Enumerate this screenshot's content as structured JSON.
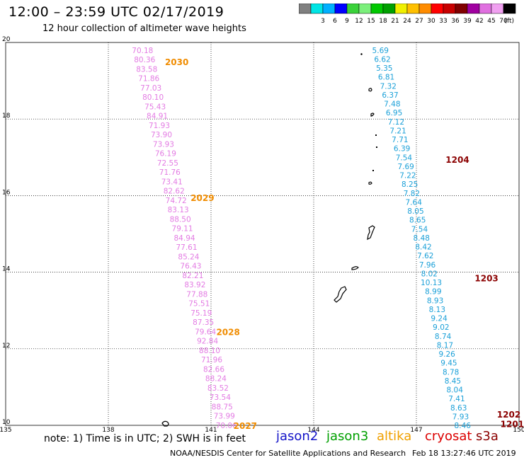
{
  "header": {
    "title": "12:00 – 23:59 UTC 02/17/2019",
    "subtitle": "12 hour collection of altimeter wave heights"
  },
  "colorbar": {
    "unit": "(ft)",
    "entries": [
      {
        "label": "",
        "color": "#808080"
      },
      {
        "label": "3",
        "color": "#00e5e5"
      },
      {
        "label": "6",
        "color": "#00b0ff"
      },
      {
        "label": "9",
        "color": "#0000ff"
      },
      {
        "label": "12",
        "color": "#3ad23a"
      },
      {
        "label": "15",
        "color": "#7cf07c"
      },
      {
        "label": "18",
        "color": "#00c800"
      },
      {
        "label": "21",
        "color": "#00a000"
      },
      {
        "label": "24",
        "color": "#f0f000"
      },
      {
        "label": "27",
        "color": "#ffc000"
      },
      {
        "label": "30",
        "color": "#ff8c00"
      },
      {
        "label": "33",
        "color": "#ff0000"
      },
      {
        "label": "36",
        "color": "#c80000"
      },
      {
        "label": "39",
        "color": "#800000"
      },
      {
        "label": "42",
        "color": "#a000a0"
      },
      {
        "label": "45",
        "color": "#e070e0"
      },
      {
        "label": "70",
        "color": "#f0a0f0"
      },
      {
        "label": "",
        "color": "#000000"
      }
    ]
  },
  "map": {
    "lon_min": 135,
    "lon_max": 150,
    "lat_min": 10,
    "lat_max": 20,
    "lon_ticks": [
      "135",
      "138",
      "141",
      "144",
      "147",
      "150"
    ],
    "lat_ticks": [
      "20",
      "18",
      "16",
      "14",
      "12",
      "10"
    ]
  },
  "tracks": [
    {
      "satellite": "cryosat",
      "color": "#e37be3",
      "lon_start": 139.0,
      "lon_end": 141.45,
      "lat_start": 19.8,
      "lat_end": 10.0,
      "values": [
        "70.18",
        "80.36",
        "83.58",
        "71.86",
        "77.03",
        "80.10",
        "75.43",
        "84.91",
        "71.93",
        "73.90",
        "73.93",
        "76.19",
        "72.55",
        "71.76",
        "73.41",
        "82.62",
        "74.72",
        "83.13",
        "88.50",
        "79.11",
        "84.94",
        "77.61",
        "85.24",
        "76.43",
        "82.21",
        "83.92",
        "77.88",
        "75.51",
        "75.19",
        "87.35",
        "79.64",
        "92.84",
        "88.10",
        "71.96",
        "82.66",
        "88.24",
        "83.52",
        "73.54",
        "88.75",
        "73.99",
        "70.06"
      ]
    },
    {
      "satellite": "jason2",
      "color": "#1ba0d8",
      "lon_start": 145.95,
      "lon_end": 148.35,
      "lat_start": 19.8,
      "lat_end": 10.0,
      "values": [
        "5.69",
        "6.62",
        "5.35",
        "6.81",
        "7.32",
        "6.37",
        "7.48",
        "6.95",
        "7.12",
        "7.21",
        "7.71",
        "6.39",
        "7.54",
        "7.69",
        "7.22",
        "8.25",
        "7.82",
        "7.64",
        "8.05",
        "8.65",
        "7.54",
        "8.48",
        "8.42",
        "7.62",
        "7.96",
        "8.02",
        "10.13",
        "8.99",
        "8.93",
        "8.13",
        "9.24",
        "9.02",
        "8.74",
        "8.17",
        "9.26",
        "9.45",
        "8.78",
        "8.45",
        "8.04",
        "7.41",
        "8.63",
        "7.93",
        "8.46"
      ]
    }
  ],
  "time_labels": [
    {
      "text": "2030",
      "color": "#f08c00",
      "lon": 140.0,
      "lat": 19.5
    },
    {
      "text": "2029",
      "color": "#f08c00",
      "lon": 140.75,
      "lat": 15.95
    },
    {
      "text": "2028",
      "color": "#f08c00",
      "lon": 141.5,
      "lat": 12.45
    },
    {
      "text": "2027",
      "color": "#f08c00",
      "lon": 142.0,
      "lat": 10.0
    },
    {
      "text": "1204",
      "color": "#8b0000",
      "lon": 148.2,
      "lat": 16.95
    },
    {
      "text": "1203",
      "color": "#8b0000",
      "lon": 149.05,
      "lat": 13.85
    },
    {
      "text": "1202",
      "color": "#8b0000",
      "lon": 149.7,
      "lat": 10.3
    },
    {
      "text": "1201",
      "color": "#8b0000",
      "lon": 149.8,
      "lat": 10.05
    }
  ],
  "footer": {
    "note": "note:  1) Time is in UTC;  2) SWH is in feet",
    "satellites": [
      {
        "name": "jason2",
        "color": "#1414c8",
        "left": 390
      },
      {
        "name": "jason3",
        "color": "#00a000",
        "left": 461
      },
      {
        "name": "altika",
        "color": "#f0a000",
        "left": 532
      },
      {
        "name": "cryosat",
        "color": "#dc0000",
        "left": 600
      },
      {
        "name": "s3a",
        "color": "#8b0000",
        "left": 672
      }
    ],
    "credit": "NOAA/NESDIS Center for Satellite Applications and Research",
    "timestamp": "Feb 18 13:27:46 UTC 2019"
  }
}
